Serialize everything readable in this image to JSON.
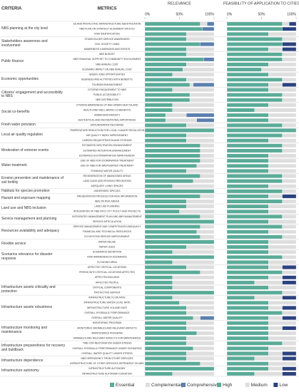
{
  "criteria_header": "CRITERIA",
  "metrics_header": "METRICS",
  "criteria": [
    {
      "name": "NBS planning at the city level",
      "metrics": [
        "ES AND PROTECTIVE INFRASTRUCTURE IDENTIFICATION",
        "NBS PLAN OR STRATEGY ALIGNMENT WITH ES",
        "RISK IDENTIFICATION"
      ]
    },
    {
      "name": "Stakeholders awareness and involvement",
      "metrics": [
        "STAKEHOLDER SERVICE AWARENESS",
        "CIVIL SOCIETY LINKS",
        "AWARENESS CAMPAIGNS AND EVENTS"
      ]
    },
    {
      "name": "Public finance",
      "metrics": [
        "NBS BUDGET",
        "NBS FINANCIAL SUPPORT TO COMMUNITY INVOLVEMENT",
        "NBS ANNUAL COST",
        "SCENARIO IMPACT ON NBS ANNUAL COST"
      ]
    },
    {
      "name": "Economic opportunities",
      "metrics": [
        "GREEN JOBS OPPORTUNITIES",
        "BUSINESS AND ACTIVITIES WITH BENEFITS",
        "TOURISM ENHANCEMENT"
      ]
    },
    {
      "name": "Citizens' engagement and accessibility to NBS",
      "metrics": [
        "CITIZENS ENGAGEMENT TO NBS",
        "PUBLIC ACCESSIBILITY",
        "NBS DISTRIBUTION"
      ]
    },
    {
      "name": "Social co-benefits",
      "metrics": [
        "CITIZENS AWARENESS OF NBS URBAN HEAT ISLAND",
        "HEALTH AND WELL-BEING CO-BENEFITS",
        "URBAN BIODIVERSITY",
        "AESTHETICAL AND RECREATIONAL IMPORTANCE"
      ]
    },
    {
      "name": "Fresh water provision",
      "metrics": [
        "GROUNDWATER RECHARGE"
      ]
    },
    {
      "name": "Local air quality regulation",
      "metrics": [
        "TEMPERATURE REDUCTION FOR LOCAL CLIMATE REGULATION",
        "AIR QUALITY INDEX IMPROVEMENT",
        "CARBON SEQUESTRATION AND STORAGE"
      ]
    },
    {
      "name": "Moderation of extreme events",
      "metrics": [
        "ESTIMATED INFILTRATION ENHANCEMENT",
        "ESTIMATED RETENTION ENHANCEMENT",
        "ESTIMATED EVOTRASPIRATION IMPROVEMENT"
      ]
    },
    {
      "name": "Water treatment",
      "metrics": [
        "USE OF NBS FOR STORMWATER TREATMENT",
        "USE OF NBS FOR WASTEWATER TREATMENT",
        "STANDING WATER QUALITY"
      ]
    },
    {
      "name": "Erosion prevention and maintenance of soil fertility",
      "metrics": [
        "REGENERATION OF ABANDONED AREAS",
        "LAND SLIDE AND EROSION PREVENTION",
        "ADEQUATE LIVING SPACES"
      ]
    },
    {
      "name": "Habitats for species promotion",
      "metrics": [
        "UNDERSEED SPECIES"
      ]
    },
    {
      "name": "Hazard and exposure mapping",
      "metrics": [
        "PRESENTATION PROCESS FOR RISK INFORMATION",
        "NBS ON RISK AREAS"
      ]
    },
    {
      "name": "Land use  and NBS inclusion",
      "metrics": [
        "LAND USE PLANNING",
        "INTEGRATION OF NBS INTO CITY POLICY AND PROJECTS"
      ]
    },
    {
      "name": "Service management and planning",
      "metrics": [
        "INTEGRATED MANAGEMENT PLAN AND NBS MANAGEMENT",
        "SERVICE ARTICULATION"
      ]
    },
    {
      "name": "Resources availability and adequacy",
      "metrics": [
        "SERVICE MANAGEMENT AND COMPETENCES ADEQUACY",
        "FINANCIAL AND TECHNICAL RESOURCES",
        "ECOSYSTEM SERVICE IMPROVEMENT"
      ]
    },
    {
      "name": "Flexible service",
      "metrics": [
        "WATER REUSE",
        "WATER USES"
      ]
    },
    {
      "name": "Scenarios relevance for disaster response",
      "metrics": [
        "SCENARIOS DEFINITION",
        "RISK AWARENESS IN SCENARIOS",
        "FLOODING AREA"
      ]
    },
    {
      "name": "",
      "metrics": [
        "AFFECTED CRITICAL LOCATIONS",
        "PERIOD WITH CRITICAL LOCATIONS AFFECTED",
        "AFFECTED BUILDING",
        "AFFECTED PEOPLE"
      ]
    },
    {
      "name": "Infrastructure assets criticality and protection",
      "metrics": [
        "CRITICAL COMPONENTS",
        "PROTECTIVE BUFFER"
      ]
    },
    {
      "name": "Infrastructure assets robustness",
      "metrics": [
        "INFRASTRUCTURE FLOW RATE",
        "INFRASTRUCTURE WATER LEVEL RATE",
        "INFRASTRUCTURE VOLUME RATE",
        "OVERALL HYDRAULIC PERFORMANCE",
        "OVERALL WATER QUALITY"
      ]
    },
    {
      "name": "Infrastructure monitoring and maintenance",
      "metrics": [
        "MONITORING PROGRAM",
        "MONITORED VARIABLES AND RELEVANT ASPECTS",
        "MAINTENANCE PROGRAM",
        "VARIABLES AND RELEVANT ASPECTS FOR MAINTENANCE"
      ]
    },
    {
      "name": "Infrastructure preparedness for recovery and buildback",
      "metrics": [
        "TIME FOR RESTORATION UNDER STRESS",
        "OVERALL HYDRAULIC PERFORMANCE UNDER SCENARIOS",
        "OVERALL WATER QUALITY UNDER STRESS"
      ]
    },
    {
      "name": "Infrastructure dependence",
      "metrics": [
        "NBS DEPENDENCY FROM OTHER SERVICES",
        "INFRASTRUCTURE OF OTHER SERVICES DEPENDENT ON NBS"
      ]
    },
    {
      "name": "Infrastructure autonomy",
      "metrics": [
        "INFRASTRUCTURE AUTONOMY",
        "INFRASTRUCTURE AUTONOMY DURATION"
      ]
    }
  ],
  "chart_data": [
    {
      "type": "stacked_barh",
      "title": "RELEVANCE",
      "xlim": [
        0,
        100
      ],
      "xticks": [
        {
          "value": 0,
          "label": "0%"
        },
        {
          "value": 50,
          "label": "50%"
        },
        {
          "value": 100,
          "label": "100%"
        }
      ],
      "series": [
        {
          "name": "Essential",
          "color": "#5aab98",
          "values": [
            80,
            83,
            60,
            60,
            80,
            60,
            60,
            85,
            60,
            55,
            40,
            60,
            65,
            40,
            65,
            65,
            40,
            40,
            30,
            30,
            60,
            100,
            60,
            60,
            80,
            80,
            80,
            80,
            75,
            60,
            80,
            70,
            40,
            100,
            80,
            60,
            60,
            50,
            80,
            100,
            80,
            75,
            80,
            100,
            60,
            40,
            100,
            40,
            60,
            80,
            40,
            40,
            40,
            100,
            40,
            50,
            60,
            60,
            70,
            60,
            60,
            75,
            60,
            60,
            70,
            60,
            60,
            80,
            100,
            40
          ]
        },
        {
          "name": "Complementary",
          "color": "#dedede",
          "values": [
            10,
            0,
            40,
            40,
            0,
            40,
            40,
            0,
            40,
            45,
            60,
            40,
            5,
            60,
            35,
            35,
            60,
            60,
            30,
            45,
            40,
            0,
            40,
            40,
            20,
            20,
            20,
            20,
            25,
            40,
            20,
            30,
            60,
            0,
            20,
            40,
            40,
            50,
            20,
            0,
            20,
            25,
            20,
            0,
            40,
            60,
            0,
            60,
            40,
            20,
            60,
            60,
            60,
            0,
            60,
            50,
            40,
            40,
            10,
            40,
            40,
            25,
            40,
            40,
            30,
            40,
            40,
            20,
            0,
            60
          ]
        },
        {
          "name": "Comprehensive",
          "color": "#5b7fae",
          "values": [
            10,
            17,
            0,
            0,
            20,
            0,
            0,
            15,
            0,
            0,
            0,
            0,
            30,
            0,
            0,
            0,
            0,
            0,
            40,
            25,
            0,
            0,
            0,
            0,
            0,
            0,
            0,
            0,
            0,
            0,
            0,
            0,
            0,
            0,
            0,
            0,
            0,
            0,
            0,
            0,
            0,
            0,
            0,
            0,
            0,
            0,
            0,
            0,
            0,
            0,
            0,
            0,
            0,
            0,
            0,
            0,
            0,
            0,
            20,
            0,
            0,
            0,
            0,
            0,
            0,
            0,
            0,
            0,
            0,
            0
          ]
        }
      ]
    },
    {
      "type": "stacked_barh",
      "title": "FEASIBILITY OF APPLICATION TO CITIES",
      "xlim": [
        0,
        100
      ],
      "xticks": [
        {
          "value": 0,
          "label": "0%"
        },
        {
          "value": 50,
          "label": "50%"
        },
        {
          "value": 100,
          "label": "100%"
        }
      ],
      "series": [
        {
          "name": "High",
          "color": "#5aab98",
          "values": [
            80,
            80,
            60,
            80,
            80,
            60,
            80,
            80,
            60,
            50,
            60,
            80,
            60,
            60,
            80,
            80,
            60,
            40,
            60,
            60,
            80,
            100,
            80,
            60,
            80,
            80,
            60,
            60,
            60,
            60,
            80,
            80,
            60,
            80,
            60,
            80,
            60,
            60,
            80,
            60,
            80,
            60,
            80,
            60,
            60,
            60,
            80,
            60,
            60,
            80,
            60,
            40,
            60,
            80,
            40,
            60,
            60,
            80,
            60,
            60,
            60,
            60,
            60,
            80,
            60,
            60,
            40,
            60,
            60,
            40
          ]
        },
        {
          "name": "Medium",
          "color": "#dedede",
          "values": [
            10,
            0,
            40,
            20,
            0,
            20,
            20,
            20,
            40,
            50,
            40,
            20,
            20,
            40,
            20,
            20,
            40,
            60,
            40,
            40,
            20,
            0,
            20,
            40,
            20,
            20,
            40,
            40,
            40,
            40,
            20,
            20,
            40,
            20,
            20,
            20,
            40,
            40,
            20,
            40,
            20,
            40,
            20,
            40,
            40,
            40,
            20,
            40,
            20,
            20,
            20,
            40,
            40,
            20,
            40,
            40,
            20,
            20,
            20,
            40,
            20,
            40,
            40,
            20,
            40,
            20,
            40,
            40,
            20,
            40
          ]
        },
        {
          "name": "Low",
          "color": "#2c4280",
          "values": [
            10,
            20,
            0,
            0,
            20,
            20,
            0,
            0,
            0,
            0,
            0,
            0,
            20,
            0,
            0,
            0,
            0,
            0,
            0,
            0,
            0,
            0,
            0,
            0,
            0,
            0,
            0,
            0,
            0,
            0,
            0,
            0,
            0,
            0,
            20,
            0,
            0,
            0,
            0,
            0,
            0,
            0,
            0,
            0,
            0,
            0,
            0,
            0,
            20,
            0,
            20,
            20,
            0,
            0,
            20,
            0,
            20,
            0,
            20,
            0,
            20,
            0,
            0,
            0,
            0,
            20,
            20,
            0,
            20,
            20
          ]
        }
      ]
    }
  ]
}
